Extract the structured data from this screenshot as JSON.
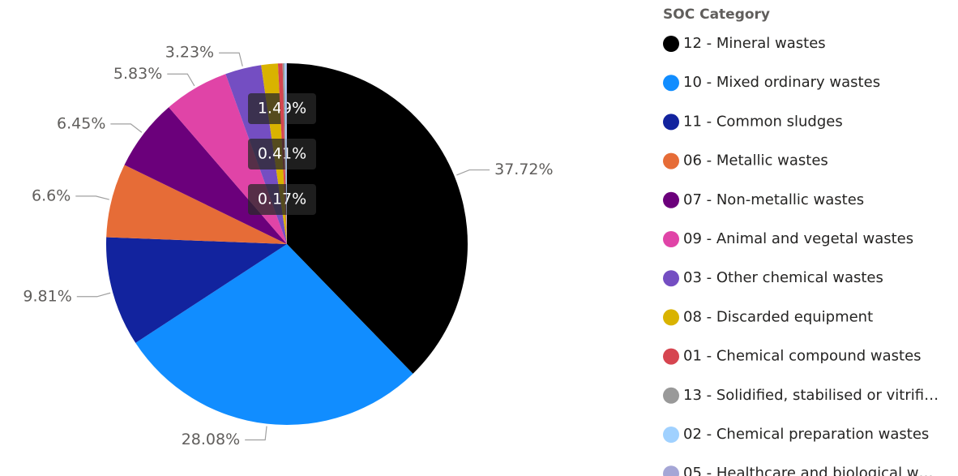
{
  "chart_data": {
    "type": "pie",
    "legend_title": "SOC Category",
    "categories": [
      "12 - Mineral wastes",
      "10 - Mixed ordinary wastes",
      "11 - Common sludges",
      "06 - Metallic wastes",
      "07 - Non-metallic wastes",
      "09 - Animal and vegetal wastes",
      "03 - Other chemical wastes",
      "08 - Discarded equipment",
      "01 - Chemical compound wastes",
      "13 - Solidified, stabilised or vitrifi…",
      "02 - Chemical preparation wastes",
      "05 - Healthcare and biological w…"
    ],
    "values": [
      37.72,
      28.08,
      9.81,
      6.6,
      6.45,
      5.83,
      3.23,
      1.49,
      0.41,
      0.17,
      0.12,
      0.09
    ],
    "value_labels": [
      "37.72%",
      "28.08%",
      "9.81%",
      "6.6%",
      "6.45%",
      "5.83%",
      "3.23%",
      "1.49%",
      "0.41%",
      "0.17%",
      null,
      null
    ],
    "colors": [
      "#000000",
      "#118DFF",
      "#12239E",
      "#E66C37",
      "#6B007B",
      "#E044A7",
      "#744EC2",
      "#D9B300",
      "#D64550",
      "#999999",
      "#A0D1FF",
      "#A5A6D6"
    ],
    "legend": "right"
  }
}
